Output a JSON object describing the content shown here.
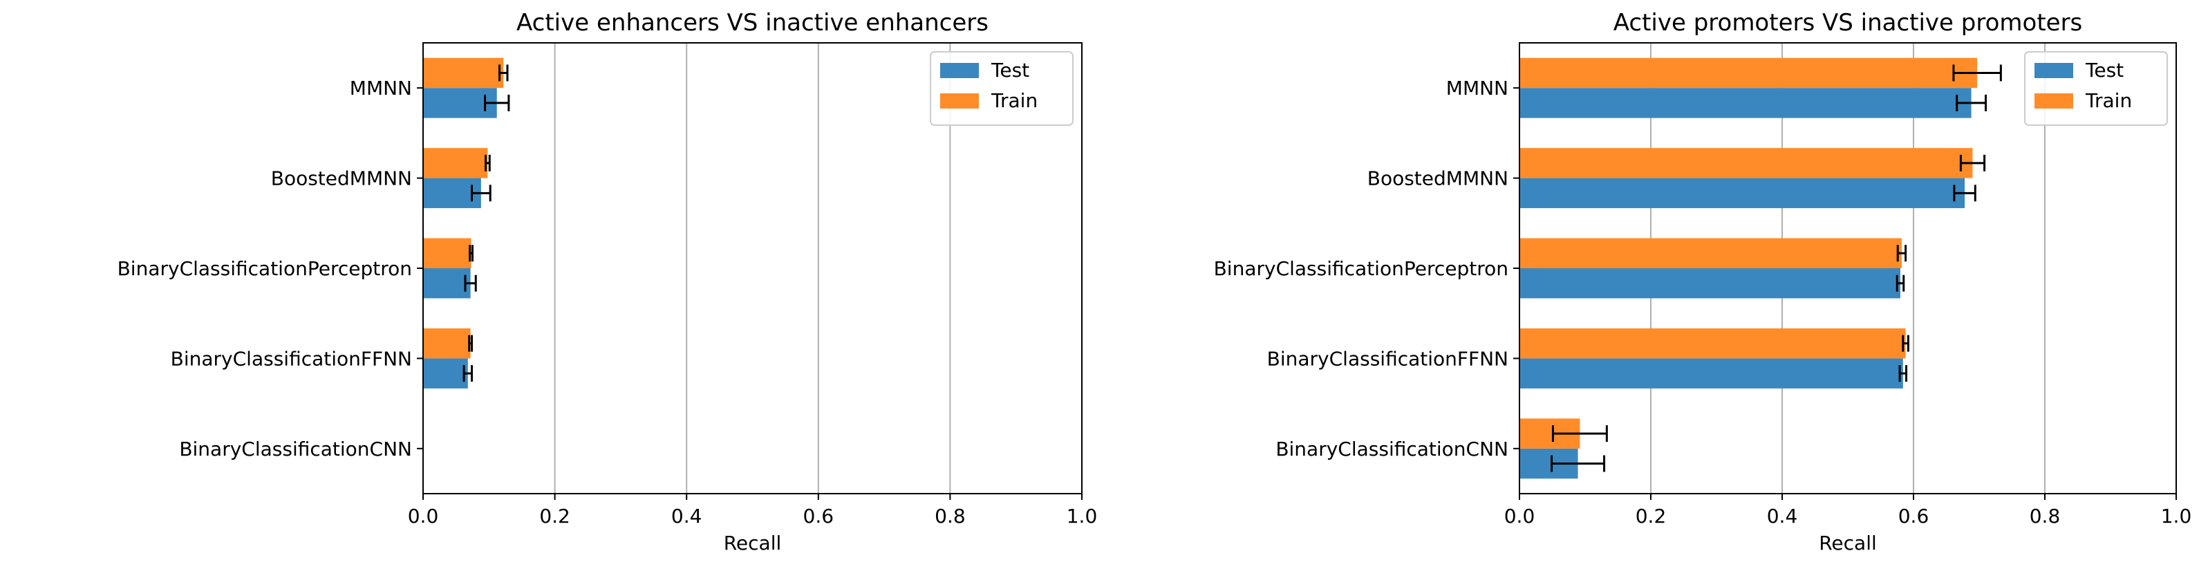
{
  "chart_data": [
    {
      "type": "bar",
      "orientation": "horizontal",
      "title": "Active enhancers VS inactive enhancers",
      "xlabel": "Recall",
      "ylabel": "",
      "xlim": [
        0,
        1.0
      ],
      "xticks": [
        "0.0",
        "0.2",
        "0.4",
        "0.6",
        "0.8",
        "1.0"
      ],
      "grid": "vertical",
      "legend_position": "top-right",
      "categories": [
        "MMNN",
        "BoostedMMNN",
        "BinaryClassificationPerceptron",
        "BinaryClassificationFFNN",
        "BinaryClassificationCNN"
      ],
      "series": [
        {
          "name": "Test",
          "color": "#3a87bf",
          "values": [
            0.112,
            0.088,
            0.072,
            0.068,
            0.0
          ],
          "errors": [
            0.018,
            0.014,
            0.008,
            0.006,
            0.0
          ]
        },
        {
          "name": "Train",
          "color": "#ff8c28",
          "values": [
            0.122,
            0.098,
            0.073,
            0.072,
            0.0
          ],
          "errors": [
            0.006,
            0.003,
            0.002,
            0.002,
            0.0
          ]
        }
      ]
    },
    {
      "type": "bar",
      "orientation": "horizontal",
      "title": "Active promoters VS inactive promoters",
      "xlabel": "Recall",
      "ylabel": "",
      "xlim": [
        0,
        1.0
      ],
      "xticks": [
        "0.0",
        "0.2",
        "0.4",
        "0.6",
        "0.8",
        "1.0"
      ],
      "grid": "vertical",
      "legend_position": "top-right",
      "categories": [
        "MMNN",
        "BoostedMMNN",
        "BinaryClassificationPerceptron",
        "BinaryClassificationFFNN",
        "BinaryClassificationCNN"
      ],
      "series": [
        {
          "name": "Test",
          "color": "#3a87bf",
          "values": [
            0.688,
            0.678,
            0.58,
            0.584,
            0.089
          ],
          "errors": [
            0.022,
            0.016,
            0.005,
            0.005,
            0.04
          ]
        },
        {
          "name": "Train",
          "color": "#ff8c28",
          "values": [
            0.697,
            0.69,
            0.582,
            0.588,
            0.092
          ],
          "errors": [
            0.036,
            0.018,
            0.006,
            0.004,
            0.041
          ]
        }
      ]
    }
  ]
}
